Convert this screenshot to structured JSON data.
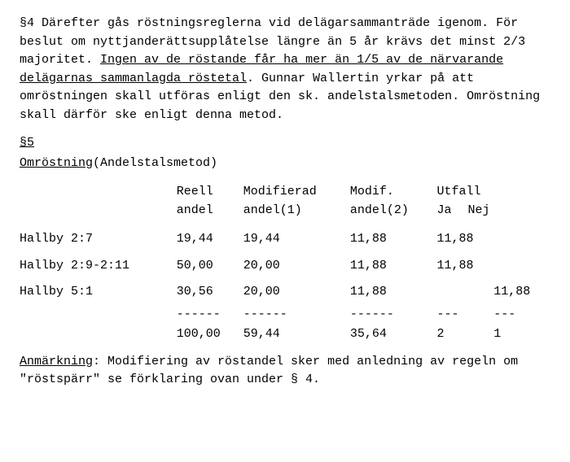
{
  "paragraph4": {
    "prefix": "§4 Därefter gås röstningsreglerna vid delägarsammanträde igenom. För beslut om nyttjanderättsupplåtelse längre än 5 år krävs det minst 2/3 majoritet. ",
    "underlined": "Ingen av de röstande får ha mer än 1/5 av de närvarande delägarnas sammanlagda röstetal",
    "suffix": ". Gunnar Wallertin yrkar på att omröstningen skall utföras enligt den sk. andelstalsmetoden. Omröstning skall därför ske enligt denna metod."
  },
  "section5": {
    "heading": "§5",
    "subheading": "Omröstning",
    "subheading_paren": "(Andelstalsmetod)"
  },
  "table": {
    "headers": {
      "col1": "",
      "col2_line1": "Reell",
      "col2_line2": "andel",
      "col3_line1": "Modifierad",
      "col3_line2": "andel(1)",
      "col4_line1": "Modif.",
      "col4_line2": "andel(2)",
      "col5_line1": "Utfall",
      "col5_ja": "Ja",
      "col5_nej": "Nej"
    },
    "rows": [
      {
        "label": "Hallby 2:7",
        "reell": "19,44",
        "mod1": "19,44",
        "mod2": "11,88",
        "ja": "11,88",
        "nej": ""
      },
      {
        "label": "Hallby 2:9-2:11",
        "reell": "50,00",
        "mod1": "20,00",
        "mod2": "11,88",
        "ja": "11,88",
        "nej": ""
      },
      {
        "label": "Hallby 5:1",
        "reell": "30,56",
        "mod1": "20,00",
        "mod2": "11,88",
        "ja": "",
        "nej": "11,88"
      }
    ],
    "dashes": {
      "reell": "------",
      "mod1": "------",
      "mod2": "------",
      "ja": "---",
      "nej": "---"
    },
    "totals": {
      "reell": "100,00",
      "mod1": "59,44",
      "mod2": "35,64",
      "ja": "2",
      "nej": "1"
    }
  },
  "footnote": {
    "label": "Anmärkning",
    "text": ": Modifiering av röstandel sker med anledning av regeln om \"röstspärr\" se förklaring ovan under § 4."
  }
}
